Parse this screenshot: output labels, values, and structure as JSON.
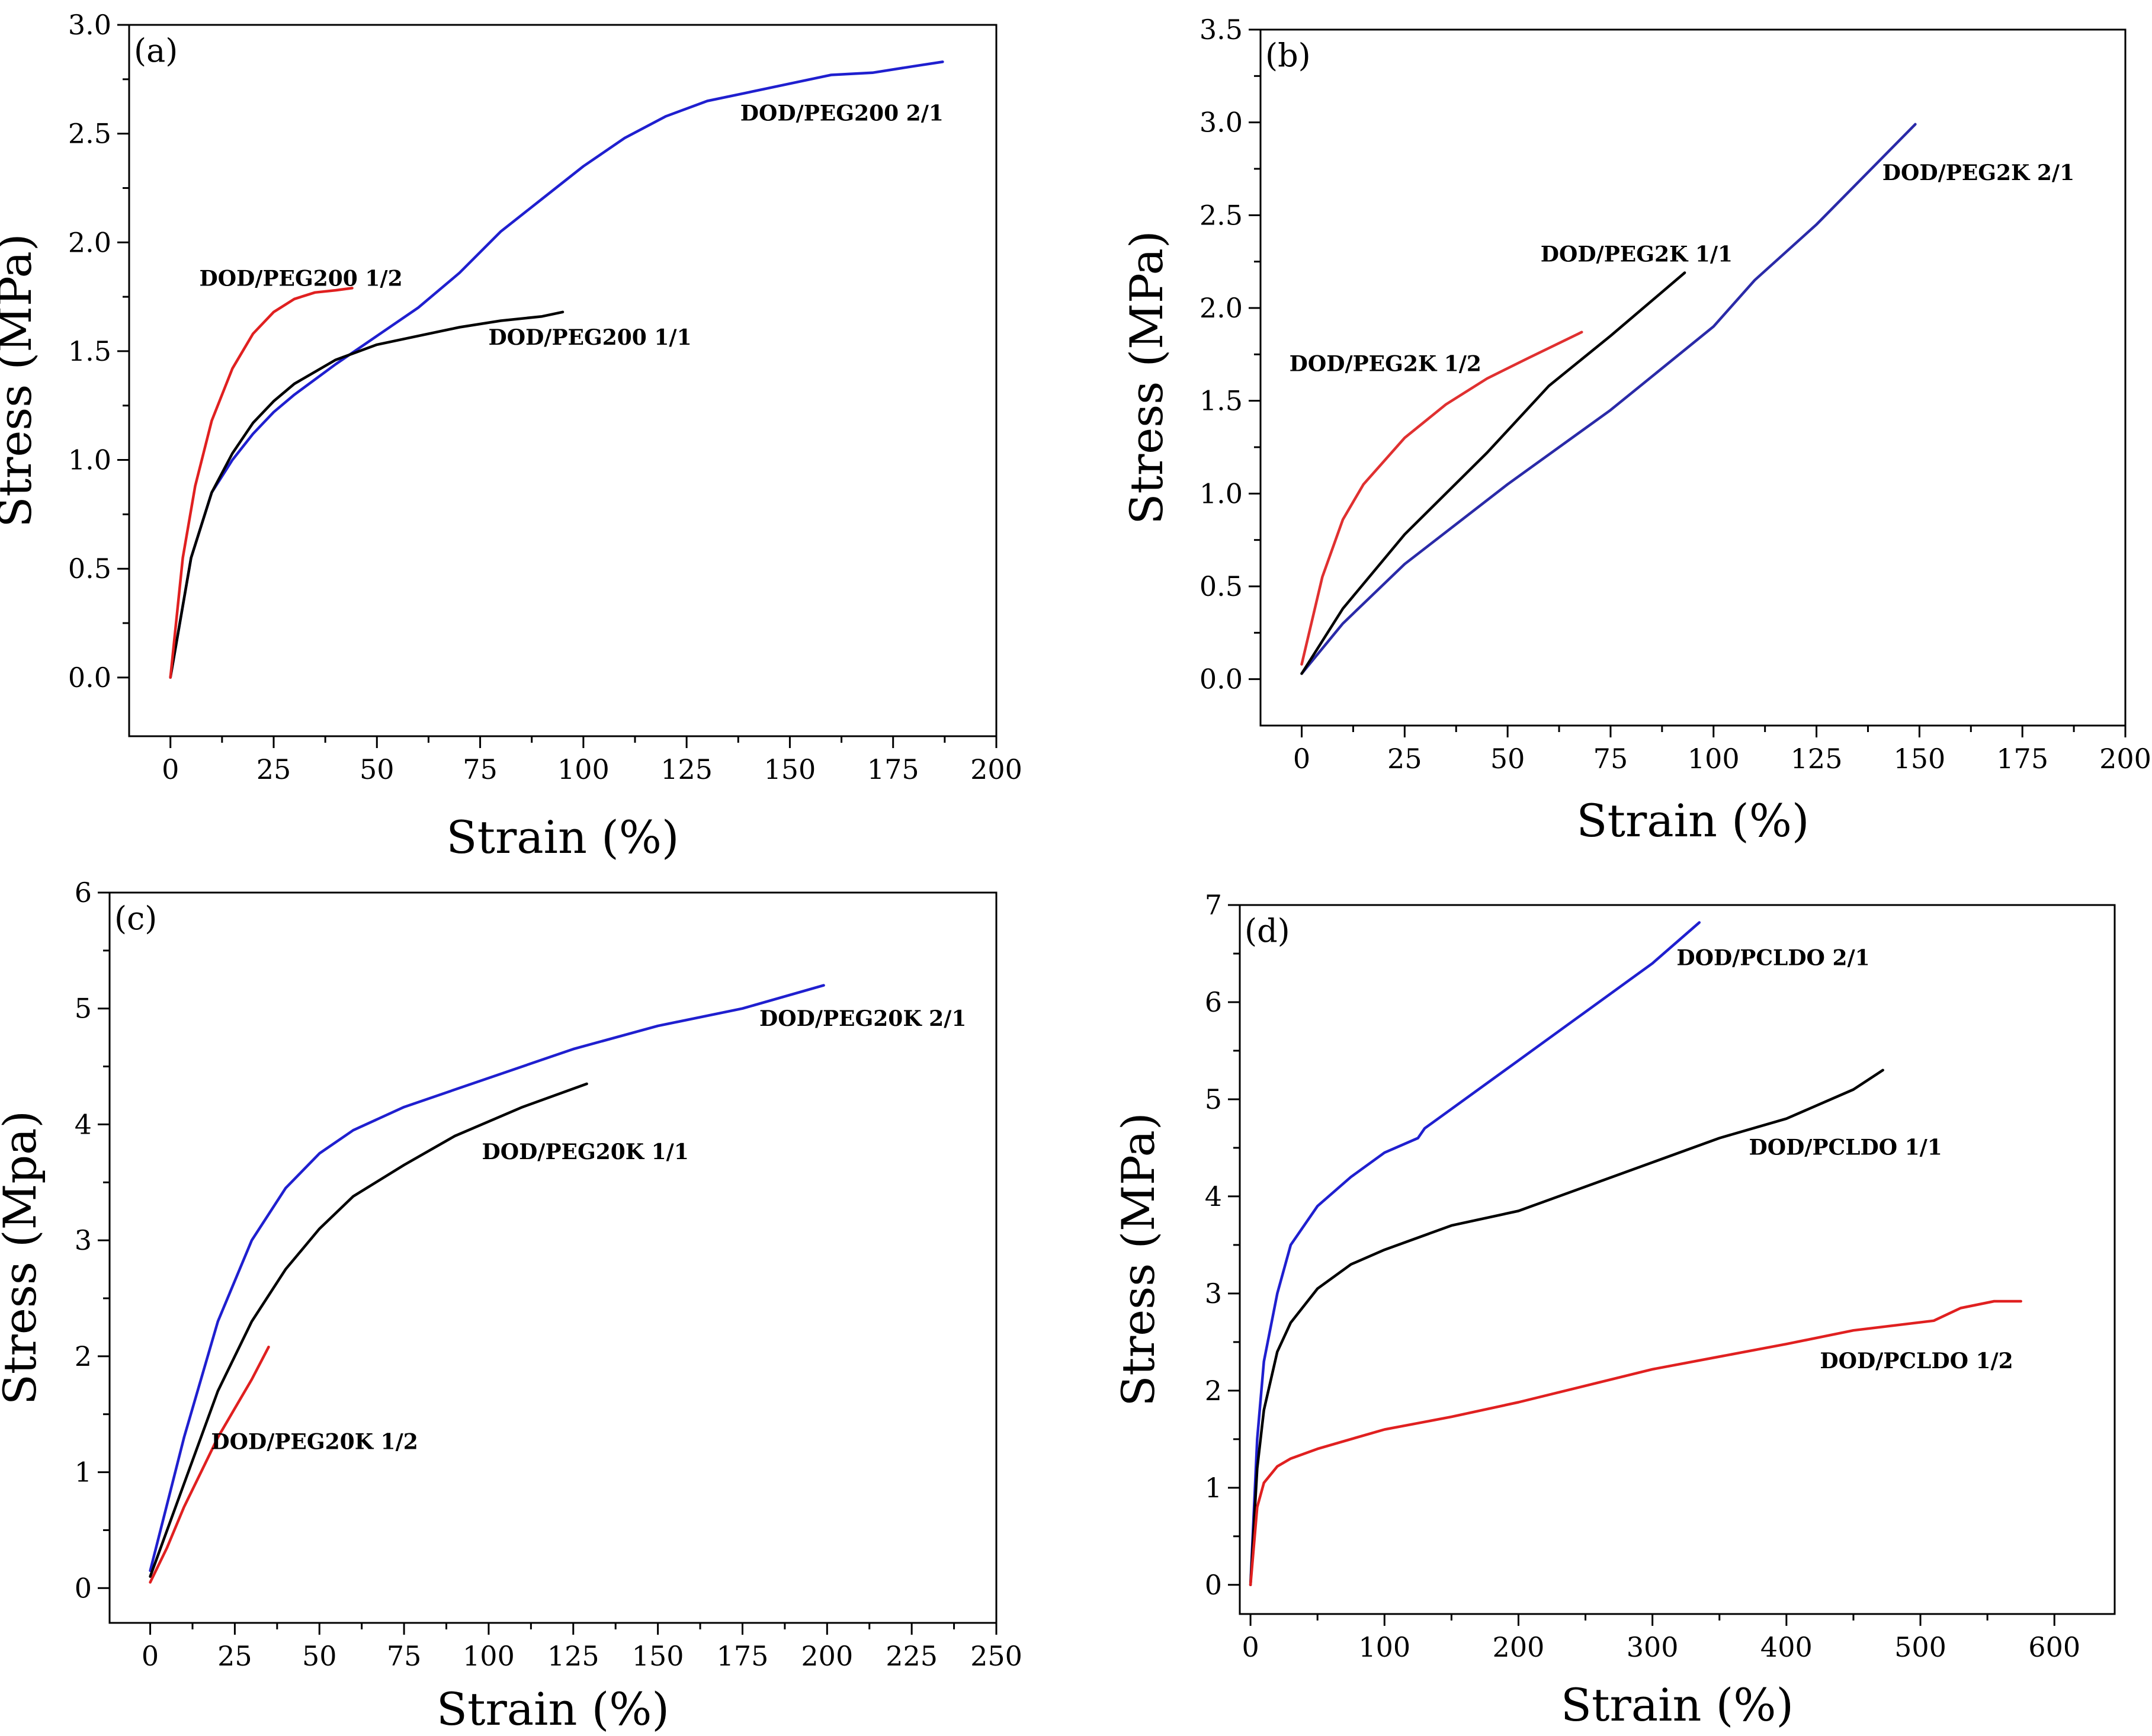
{
  "chart_data": [
    {
      "type": "line",
      "panel_label": "(a)",
      "xlabel": "Strain (%)",
      "ylabel": "Stress (MPa)",
      "xlim": [
        -10,
        200
      ],
      "ylim": [
        -0.27,
        3.0
      ],
      "xticks": [
        "0",
        "25",
        "50",
        "75",
        "100",
        "125",
        "150",
        "175",
        "200"
      ],
      "yticks": [
        "0.0",
        "0.5",
        "1.0",
        "1.5",
        "2.0",
        "2.5",
        "3.0"
      ],
      "series": [
        {
          "name": "DOD/PEG200 2/1",
          "color": "#1f1fcf",
          "x": [
            0,
            5,
            10,
            15,
            20,
            25,
            30,
            40,
            50,
            60,
            70,
            80,
            90,
            100,
            110,
            120,
            130,
            140,
            150,
            160,
            170,
            180,
            187
          ],
          "y": [
            0,
            0.55,
            0.85,
            1.0,
            1.12,
            1.22,
            1.3,
            1.44,
            1.57,
            1.7,
            1.86,
            2.05,
            2.2,
            2.35,
            2.48,
            2.58,
            2.65,
            2.69,
            2.73,
            2.77,
            2.78,
            2.81,
            2.83
          ]
        },
        {
          "name": "DOD/PEG200 1/1",
          "color": "#000000",
          "x": [
            0,
            5,
            10,
            15,
            20,
            25,
            30,
            40,
            50,
            60,
            70,
            80,
            90,
            95
          ],
          "y": [
            0,
            0.55,
            0.85,
            1.03,
            1.17,
            1.27,
            1.35,
            1.46,
            1.53,
            1.57,
            1.61,
            1.64,
            1.66,
            1.68
          ]
        },
        {
          "name": "DOD/PEG200 1/2",
          "color": "#e02020",
          "x": [
            0,
            3,
            6,
            10,
            15,
            20,
            25,
            30,
            35,
            40,
            44
          ],
          "y": [
            0,
            0.55,
            0.88,
            1.18,
            1.42,
            1.58,
            1.68,
            1.74,
            1.77,
            1.78,
            1.79
          ]
        }
      ],
      "annotations": [
        {
          "text": "DOD/PEG200 2/1",
          "x": 138,
          "y": 2.56
        },
        {
          "text": "DOD/PEG200 1/2",
          "x": 7,
          "y": 1.8
        },
        {
          "text": "DOD/PEG200 1/1",
          "x": 77,
          "y": 1.53
        }
      ]
    },
    {
      "type": "line",
      "panel_label": "(b)",
      "xlabel": "Strain (%)",
      "ylabel": "Stress (MPa)",
      "xlim": [
        -10,
        200
      ],
      "ylim": [
        -0.25,
        3.5
      ],
      "xticks": [
        "0",
        "25",
        "50",
        "75",
        "100",
        "125",
        "150",
        "175",
        "200"
      ],
      "yticks": [
        "0.0",
        "0.5",
        "1.0",
        "1.5",
        "2.0",
        "2.5",
        "3.0",
        "3.5"
      ],
      "series": [
        {
          "name": "DOD/PEG2K 2/1",
          "color": "#2a2aa8",
          "x": [
            0,
            10,
            25,
            50,
            75,
            100,
            110,
            125,
            149
          ],
          "y": [
            0.03,
            0.3,
            0.62,
            1.05,
            1.45,
            1.9,
            2.15,
            2.45,
            2.99
          ]
        },
        {
          "name": "DOD/PEG2K 1/1",
          "color": "#000000",
          "x": [
            0,
            10,
            25,
            45,
            60,
            75,
            93
          ],
          "y": [
            0.03,
            0.38,
            0.78,
            1.22,
            1.58,
            1.85,
            2.19
          ]
        },
        {
          "name": "DOD/PEG2K 1/2",
          "color": "#e03030",
          "x": [
            0,
            5,
            10,
            15,
            25,
            35,
            45,
            55,
            68
          ],
          "y": [
            0.08,
            0.55,
            0.86,
            1.05,
            1.3,
            1.48,
            1.62,
            1.73,
            1.87
          ]
        }
      ],
      "annotations": [
        {
          "text": "DOD/PEG2K 2/1",
          "x": 141,
          "y": 2.69
        },
        {
          "text": "DOD/PEG2K 1/1",
          "x": 58,
          "y": 2.25
        },
        {
          "text": "DOD/PEG2K 1/2",
          "x": -3,
          "y": 1.66
        }
      ]
    },
    {
      "type": "line",
      "panel_label": "(c)",
      "xlabel": "Strain (%)",
      "ylabel": "Stress (Mpa)",
      "xlim": [
        -12,
        250
      ],
      "ylim": [
        -0.3,
        6.0
      ],
      "xticks": [
        "0",
        "25",
        "50",
        "75",
        "100",
        "125",
        "150",
        "175",
        "200",
        "225",
        "250"
      ],
      "yticks": [
        "0",
        "1",
        "2",
        "3",
        "4",
        "5",
        "6"
      ],
      "series": [
        {
          "name": "DOD/PEG20K 2/1",
          "color": "#1f1fcf",
          "x": [
            0,
            10,
            20,
            30,
            40,
            50,
            60,
            75,
            100,
            125,
            150,
            175,
            199
          ],
          "y": [
            0.15,
            1.3,
            2.3,
            3.0,
            3.45,
            3.75,
            3.95,
            4.15,
            4.4,
            4.65,
            4.85,
            5.0,
            5.2
          ]
        },
        {
          "name": "DOD/PEG20K 1/1",
          "color": "#000000",
          "x": [
            0,
            10,
            20,
            30,
            40,
            50,
            60,
            75,
            90,
            110,
            129
          ],
          "y": [
            0.1,
            0.9,
            1.7,
            2.3,
            2.75,
            3.1,
            3.38,
            3.65,
            3.9,
            4.15,
            4.35
          ]
        },
        {
          "name": "DOD/PEG20K 1/2",
          "color": "#e02020",
          "x": [
            0,
            5,
            10,
            15,
            20,
            25,
            30,
            35
          ],
          "y": [
            0.05,
            0.35,
            0.7,
            1.0,
            1.3,
            1.55,
            1.8,
            2.08
          ]
        }
      ],
      "annotations": [
        {
          "text": "DOD/PEG20K 2/1",
          "x": 180,
          "y": 4.85
        },
        {
          "text": "DOD/PEG20K 1/1",
          "x": 98,
          "y": 3.7
        },
        {
          "text": "DOD/PEG20K 1/2",
          "x": 18,
          "y": 1.2
        }
      ]
    },
    {
      "type": "line",
      "panel_label": "(d)",
      "xlabel": "Strain (%)",
      "ylabel": "Stress (MPa)",
      "xlim": [
        -8,
        645
      ],
      "ylim": [
        -0.3,
        7.0
      ],
      "xticks": [
        "0",
        "100",
        "200",
        "300",
        "400",
        "500",
        "600"
      ],
      "yticks": [
        "0",
        "1",
        "2",
        "3",
        "4",
        "5",
        "6",
        "7"
      ],
      "series": [
        {
          "name": "DOD/PCLDO 2/1",
          "color": "#1f1fcf",
          "x": [
            0,
            5,
            10,
            20,
            30,
            50,
            75,
            100,
            125,
            130,
            150,
            200,
            250,
            300,
            335
          ],
          "y": [
            0,
            1.5,
            2.3,
            3.0,
            3.5,
            3.9,
            4.2,
            4.45,
            4.6,
            4.7,
            4.9,
            5.4,
            5.9,
            6.4,
            6.82
          ]
        },
        {
          "name": "DOD/PCLDO 1/1",
          "color": "#000000",
          "x": [
            0,
            5,
            10,
            20,
            30,
            50,
            75,
            100,
            150,
            200,
            210,
            250,
            300,
            350,
            400,
            450,
            472
          ],
          "y": [
            0,
            1.2,
            1.8,
            2.4,
            2.7,
            3.05,
            3.3,
            3.45,
            3.7,
            3.85,
            3.9,
            4.1,
            4.35,
            4.6,
            4.8,
            5.1,
            5.3
          ]
        },
        {
          "name": "DOD/PCLDO 1/2",
          "color": "#e02020",
          "x": [
            0,
            5,
            10,
            20,
            30,
            50,
            75,
            100,
            150,
            200,
            250,
            300,
            350,
            400,
            450,
            510,
            530,
            555,
            575
          ],
          "y": [
            0,
            0.8,
            1.05,
            1.22,
            1.3,
            1.4,
            1.5,
            1.6,
            1.73,
            1.88,
            2.05,
            2.22,
            2.35,
            2.48,
            2.62,
            2.72,
            2.85,
            2.92,
            2.92
          ]
        }
      ],
      "annotations": [
        {
          "text": "DOD/PCLDO 2/1",
          "x": 318,
          "y": 6.38
        },
        {
          "text": "DOD/PCLDO 1/1",
          "x": 372,
          "y": 4.43
        },
        {
          "text": "DOD/PCLDO 1/2",
          "x": 425,
          "y": 2.23
        }
      ]
    }
  ]
}
